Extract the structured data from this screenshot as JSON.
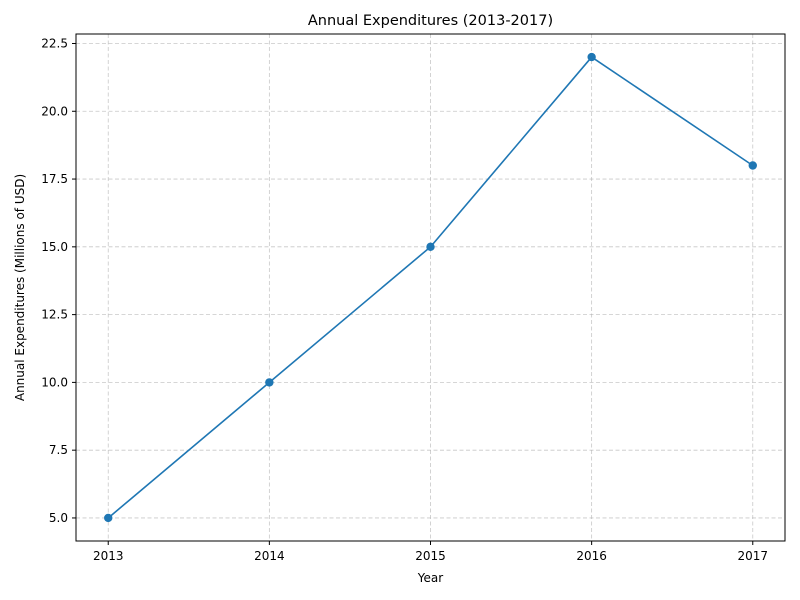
{
  "chart_data": {
    "type": "line",
    "title": "Annual Expenditures (2013-2017)",
    "xlabel": "Year",
    "ylabel": "Annual Expenditures (Millions of USD)",
    "categories": [
      "2013",
      "2014",
      "2015",
      "2016",
      "2017"
    ],
    "series": [
      {
        "values": [
          5,
          10,
          15,
          22,
          18
        ],
        "color": "#1f77b4",
        "marker": "circle"
      }
    ],
    "ylim": [
      4.15,
      22.85
    ],
    "xlim": [
      2012.8,
      2017.2
    ],
    "yticks": [
      5.0,
      7.5,
      10.0,
      12.5,
      15.0,
      17.5,
      20.0,
      22.5
    ],
    "ytick_labels": [
      "5.0",
      "7.5",
      "10.0",
      "12.5",
      "15.0",
      "17.5",
      "20.0",
      "22.5"
    ],
    "grid": true,
    "grid_style": "dashed",
    "legend": false
  }
}
